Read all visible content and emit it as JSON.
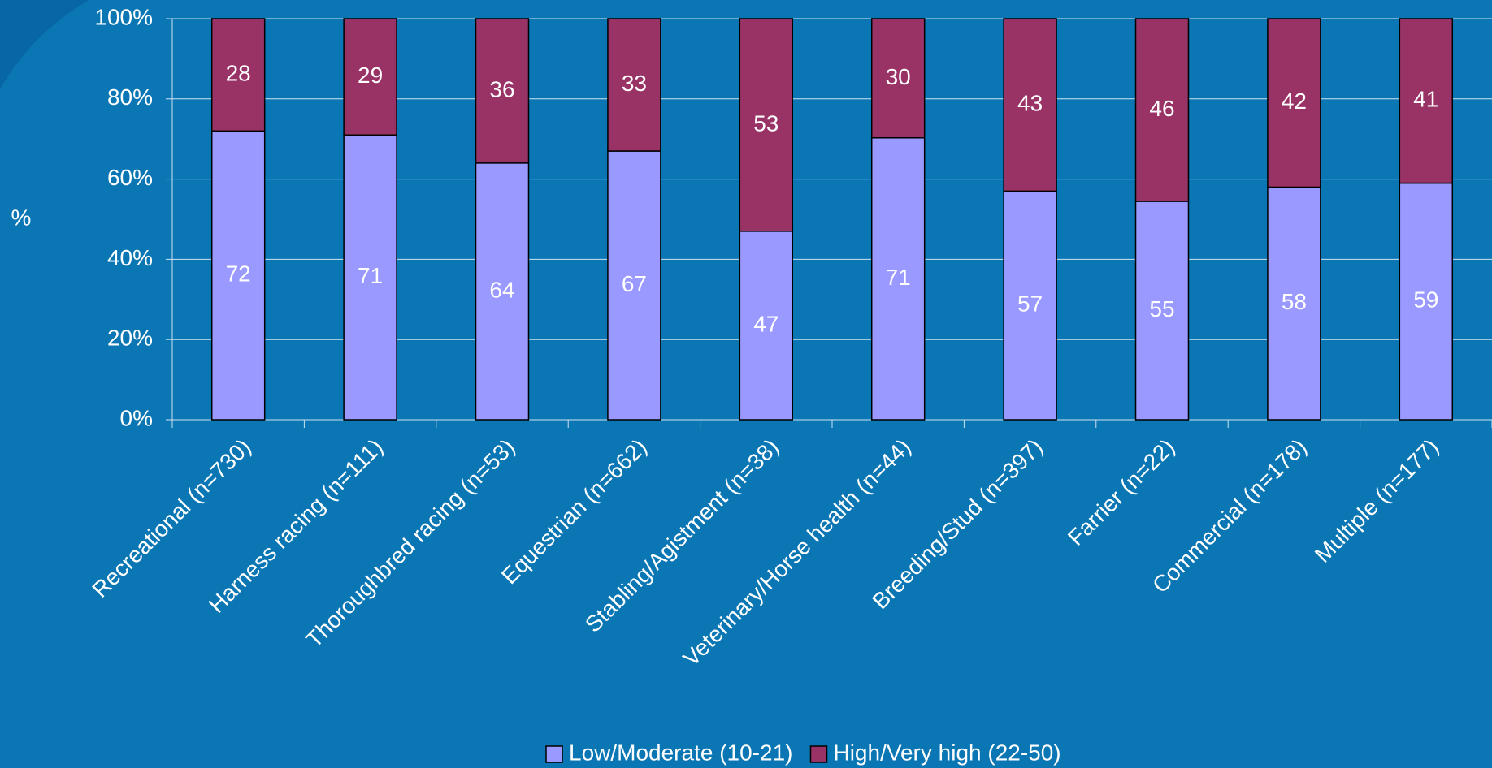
{
  "chart_data": {
    "type": "bar",
    "stacking": "percent",
    "ylabel": "%",
    "categories": [
      "Recreational (n=730)",
      "Harness racing (n=111)",
      "Thoroughbred racing (n=53)",
      "Equestrian (n=662)",
      "Stabling/Agistment (n=38)",
      "Veterinary/Horse health (n=44)",
      "Breeding/Stud (n=397)",
      "Farrier (n=22)",
      "Commercial (n=178)",
      "Multiple (n=177)"
    ],
    "series": [
      {
        "name": "Low/Moderate (10-21)",
        "color": "#9999ff",
        "values": [
          72,
          71,
          64,
          67,
          47,
          71,
          57,
          55,
          58,
          59
        ]
      },
      {
        "name": "High/Very high (22-50)",
        "color": "#993366",
        "values": [
          28,
          29,
          36,
          33,
          53,
          30,
          43,
          46,
          42,
          41
        ]
      }
    ],
    "ylim": [
      0,
      100
    ],
    "yticks": [
      {
        "value": 0,
        "label": "0%"
      },
      {
        "value": 20,
        "label": "20%"
      },
      {
        "value": 40,
        "label": "40%"
      },
      {
        "value": 60,
        "label": "60%"
      },
      {
        "value": 80,
        "label": "80%"
      },
      {
        "value": 100,
        "label": "100%"
      }
    ],
    "grid": true,
    "legend": "bottom"
  }
}
